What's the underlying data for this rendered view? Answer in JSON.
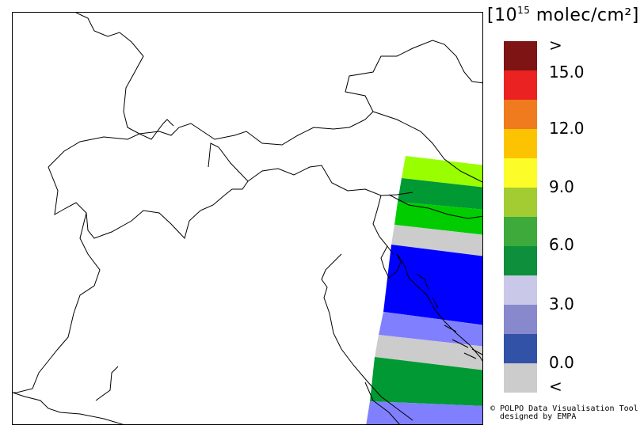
{
  "legend": {
    "unit_open": "[10",
    "unit_exp": "15",
    "unit_close": " molec/cm²]",
    "labels": [
      ">",
      "15.0",
      "12.0",
      "9.0",
      "6.0",
      "3.0",
      "0.0",
      "<"
    ],
    "colors": [
      "#7f1414",
      "#ea2222",
      "#f07a1e",
      "#fcc400",
      "#fcfc28",
      "#a3cc33",
      "#3eaa3c",
      "#0d8f3b",
      "#cac8e8",
      "#8888cc",
      "#3252a8",
      "#cccccc"
    ]
  },
  "credit": {
    "line1": "POLPO Data Visualisation Tool",
    "line2": "designed by EMPA",
    "symbol": "©"
  },
  "swath": {
    "colors": [
      "#99ff00",
      "#009933",
      "#00cc00",
      "#cccccc",
      "#0000ff",
      "#8080ff",
      "#cccccc",
      "#009933",
      "#8080ff"
    ]
  }
}
